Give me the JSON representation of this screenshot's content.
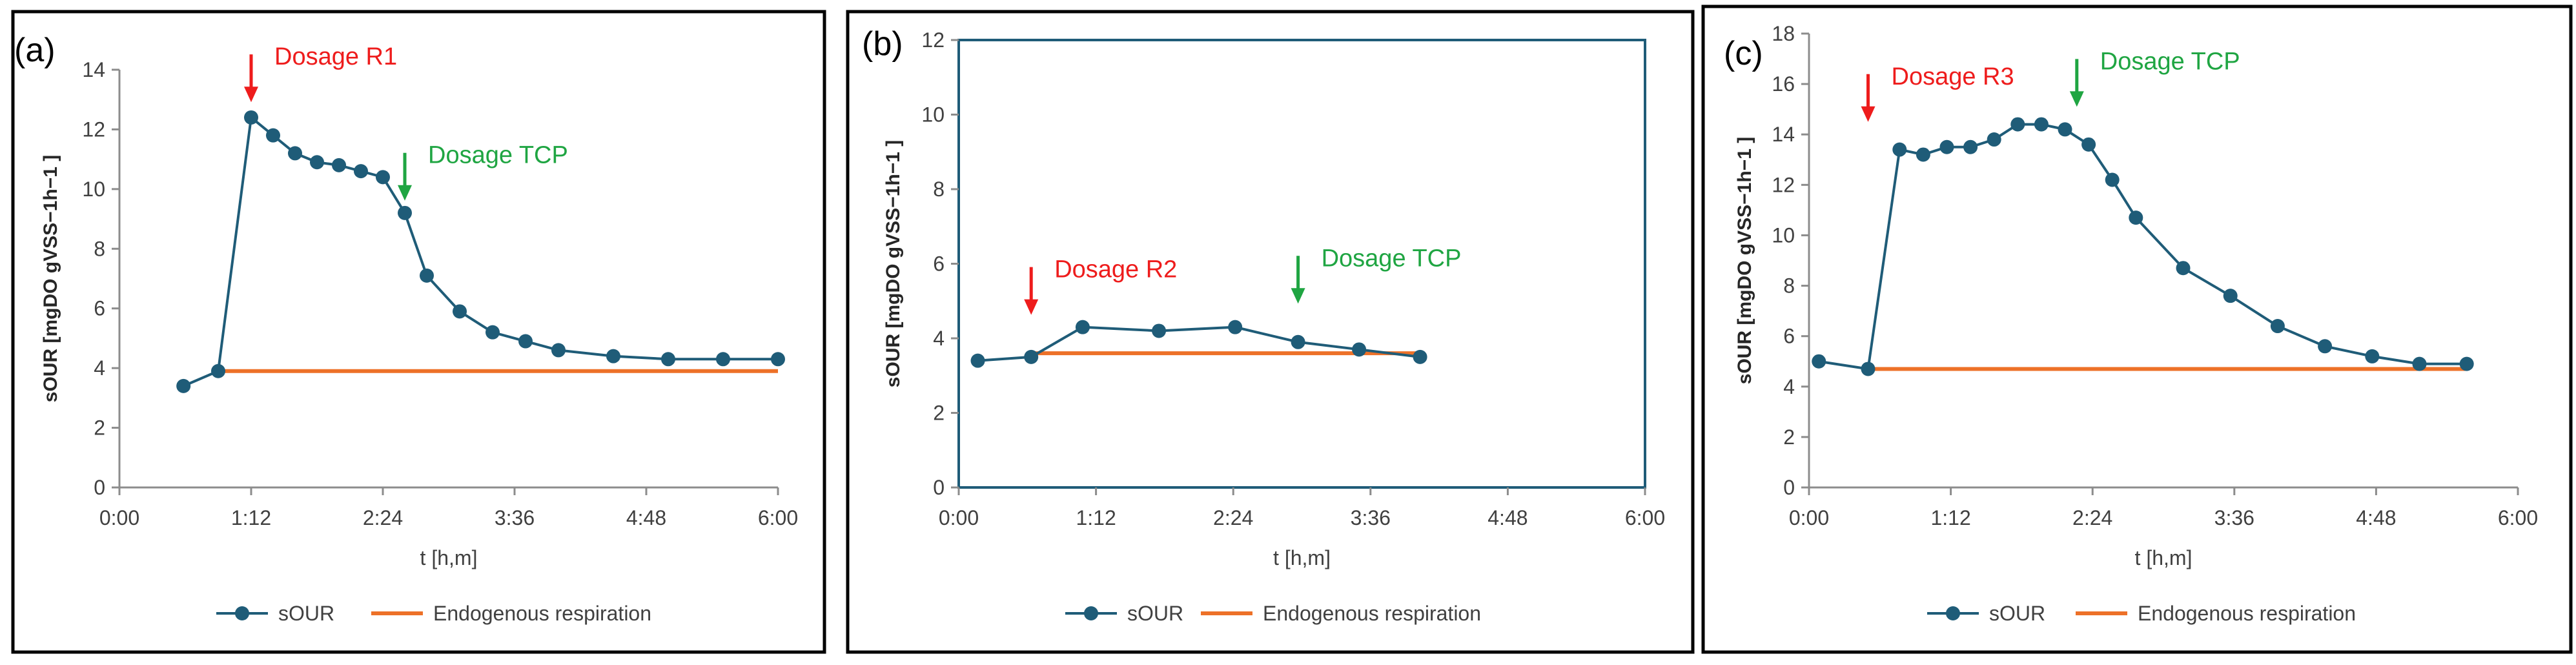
{
  "colors": {
    "sour": "#1f5c78",
    "endogenous": "#ed7128",
    "red_arrow": "#ee1c1c",
    "green_arrow": "#1fa542",
    "plot_border_b": "#1f5c78"
  },
  "chart_data": [
    {
      "type": "line",
      "panel_label": "(a)",
      "xlabel": "t [h,m]",
      "ylabel": "sOUR [mgDO gVSS−1h−1 ]",
      "x_unit": "minutes",
      "x_ticks": [
        "0:00",
        "1:12",
        "2:24",
        "3:36",
        "4:48",
        "6:00"
      ],
      "xlim": [
        0,
        360
      ],
      "ylim": [
        0,
        14
      ],
      "y_ticks": [
        0,
        2,
        4,
        6,
        8,
        10,
        12,
        14
      ],
      "series": [
        {
          "name": "sOUR",
          "type": "line-markers",
          "x": [
            35,
            54,
            72,
            84,
            96,
            108,
            120,
            132,
            144,
            156,
            168,
            186,
            204,
            222,
            240,
            270,
            300,
            330,
            360
          ],
          "y": [
            3.4,
            3.9,
            12.4,
            11.8,
            11.2,
            10.9,
            10.8,
            10.6,
            10.4,
            9.2,
            7.1,
            5.9,
            5.2,
            4.9,
            4.6,
            4.4,
            4.3,
            4.3,
            4.3
          ]
        },
        {
          "name": "Endogenous respiration",
          "type": "line",
          "x": [
            54,
            360
          ],
          "y": [
            3.9,
            3.9
          ]
        }
      ],
      "annotations": [
        {
          "text": "Dosage R1",
          "color": "red",
          "x": 72,
          "y": 13.0,
          "arrow": true
        },
        {
          "text": "Dosage TCP",
          "color": "green",
          "x": 156,
          "y": 9.7,
          "arrow": true
        }
      ],
      "legend": [
        "sOUR",
        "Endogenous respiration"
      ],
      "legend_position": "bottom"
    },
    {
      "type": "line",
      "panel_label": "(b)",
      "xlabel": "t [h,m]",
      "ylabel": "sOUR [mgDO gVSS−1h−1 ]",
      "x_unit": "minutes",
      "x_ticks": [
        "0:00",
        "1:12",
        "2:24",
        "3:36",
        "4:48",
        "6:00"
      ],
      "xlim": [
        0,
        360
      ],
      "ylim": [
        0,
        12
      ],
      "y_ticks": [
        0,
        2,
        4,
        6,
        8,
        10,
        12
      ],
      "series": [
        {
          "name": "sOUR",
          "type": "line-markers",
          "x": [
            10,
            38,
            65,
            105,
            145,
            178,
            210,
            242
          ],
          "y": [
            3.4,
            3.5,
            4.3,
            4.2,
            4.3,
            3.9,
            3.7,
            3.5
          ]
        },
        {
          "name": "Endogenous respiration",
          "type": "line",
          "x": [
            38,
            242
          ],
          "y": [
            3.6,
            3.6
          ]
        }
      ],
      "annotations": [
        {
          "text": "Dosage R2",
          "color": "red",
          "x": 38,
          "y": 4.7,
          "arrow": true
        },
        {
          "text": "Dosage TCP",
          "color": "green",
          "x": 178,
          "y": 5.0,
          "arrow": true
        }
      ],
      "legend": [
        "sOUR",
        "Endogenous respiration"
      ],
      "legend_position": "bottom"
    },
    {
      "type": "line",
      "panel_label": "(c)",
      "xlabel": "t [h,m]",
      "ylabel": "sOUR [mgDO gVSS−1h−1 ]",
      "x_unit": "minutes",
      "x_ticks": [
        "0:00",
        "1:12",
        "2:24",
        "3:36",
        "4:48",
        "6:00"
      ],
      "xlim": [
        0,
        360
      ],
      "ylim": [
        0,
        18
      ],
      "y_ticks": [
        0,
        2,
        4,
        6,
        8,
        10,
        12,
        14,
        16,
        18
      ],
      "series": [
        {
          "name": "sOUR",
          "type": "line-markers",
          "x": [
            5,
            30,
            46,
            58,
            70,
            82,
            94,
            106,
            118,
            130,
            142,
            154,
            166,
            190,
            214,
            238,
            262,
            286,
            310,
            334
          ],
          "y": [
            5.0,
            4.7,
            13.4,
            13.2,
            13.5,
            13.5,
            13.8,
            14.4,
            14.4,
            14.2,
            13.6,
            12.2,
            10.7,
            8.7,
            7.6,
            6.4,
            5.6,
            5.2,
            4.9,
            4.9
          ]
        },
        {
          "name": "Endogenous respiration",
          "type": "line",
          "x": [
            30,
            334
          ],
          "y": [
            4.7,
            4.7
          ]
        }
      ],
      "annotations": [
        {
          "text": "Dosage R3",
          "color": "red",
          "x": 30,
          "y": 14.6,
          "arrow": true
        },
        {
          "text": "Dosage TCP",
          "color": "green",
          "x": 136,
          "y": 15.2,
          "arrow": true
        }
      ],
      "legend": [
        "sOUR",
        "Endogenous respiration"
      ],
      "legend_position": "bottom"
    }
  ]
}
